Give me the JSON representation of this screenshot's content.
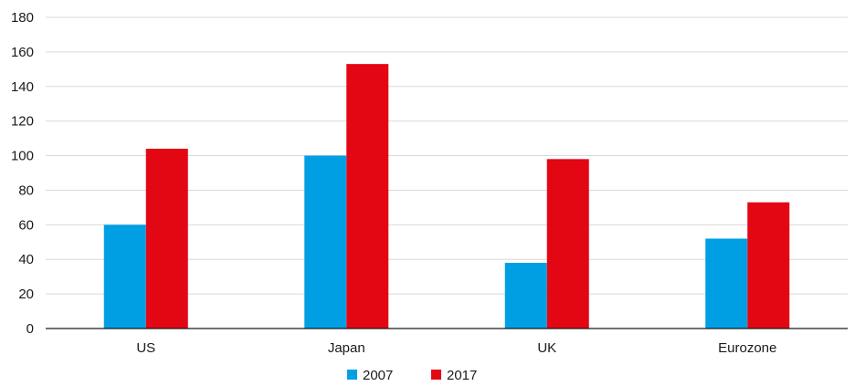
{
  "chart_data": {
    "type": "bar",
    "title": "",
    "xlabel": "",
    "ylabel": "",
    "categories": [
      "US",
      "Japan",
      "UK",
      "Eurozone"
    ],
    "series": [
      {
        "name": "2007",
        "color": "#009fe3",
        "values": [
          60,
          100,
          38,
          52
        ]
      },
      {
        "name": "2017",
        "color": "#e30613",
        "values": [
          104,
          153,
          98,
          73
        ]
      }
    ],
    "ylim": [
      0,
      180
    ],
    "yticks": [
      0,
      20,
      40,
      60,
      80,
      100,
      120,
      140,
      160,
      180
    ],
    "grid": true,
    "legend": "bottom-center",
    "gridline_color": "#d9d9d9",
    "axis_color": "#1a1a1a"
  }
}
